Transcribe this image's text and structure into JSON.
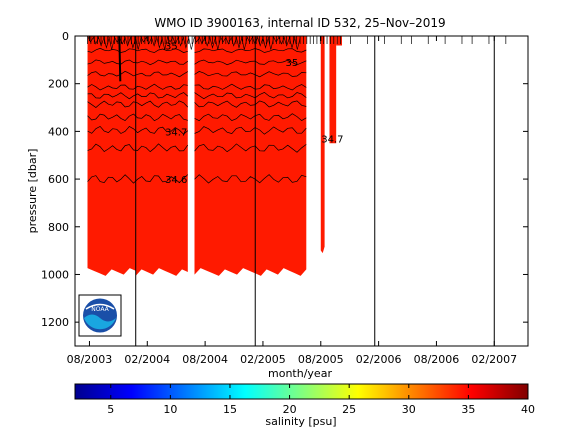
{
  "chart_data": {
    "type": "heatmap",
    "title": "WMO ID 3900163, internal ID 532, 25–Nov–2019",
    "xlabel": "month/year",
    "ylabel": "pressure [dbar]",
    "x_tick_labels": [
      "08/2003",
      "02/2004",
      "08/2004",
      "02/2005",
      "08/2005",
      "02/2006",
      "08/2006",
      "02/2007"
    ],
    "x_tick_months": [
      0,
      6,
      12,
      18,
      24,
      30,
      36,
      42
    ],
    "xlim_months": [
      -1.5,
      45.5
    ],
    "y_ticks": [
      0,
      200,
      400,
      600,
      800,
      1000,
      1200
    ],
    "ylim": [
      1300,
      0
    ],
    "y_inverted": true,
    "cycle_lines_months": [
      4.8,
      17.2,
      29.6,
      42.0
    ],
    "data_segments": [
      {
        "from_month": -0.2,
        "to_month": 4.8,
        "max_pressure": 990
      },
      {
        "from_month": 4.8,
        "to_month": 10.2,
        "max_pressure": 990
      },
      {
        "from_month": 10.9,
        "to_month": 17.2,
        "max_pressure": 990
      },
      {
        "from_month": 17.2,
        "to_month": 22.5,
        "max_pressure": 990
      },
      {
        "from_month": 24.0,
        "to_month": 24.4,
        "max_pressure": 900
      },
      {
        "from_month": 24.9,
        "to_month": 25.6,
        "max_pressure": 450
      },
      {
        "from_month": 25.6,
        "to_month": 26.2,
        "max_pressure": 40
      }
    ],
    "contours": [
      {
        "label": "35",
        "pressure": 40,
        "label_month": 8.5
      },
      {
        "label": "35",
        "pressure": 110,
        "label_month": 21.0
      },
      {
        "label": "34.7",
        "pressure": 400,
        "label_month": 9.0
      },
      {
        "label": "34.6",
        "pressure": 600,
        "label_month": 9.0
      },
      {
        "label": "34.7",
        "pressure": 430,
        "label_month": 25.2
      }
    ],
    "colorbar": {
      "label": "salinity [psu]",
      "range": [
        2,
        40
      ],
      "ticks": [
        5,
        10,
        15,
        20,
        25,
        30,
        35,
        40
      ],
      "colormap": "jet"
    },
    "fill_color": "#ff1a00",
    "grid": false
  },
  "logo": {
    "text": "NOAA"
  }
}
